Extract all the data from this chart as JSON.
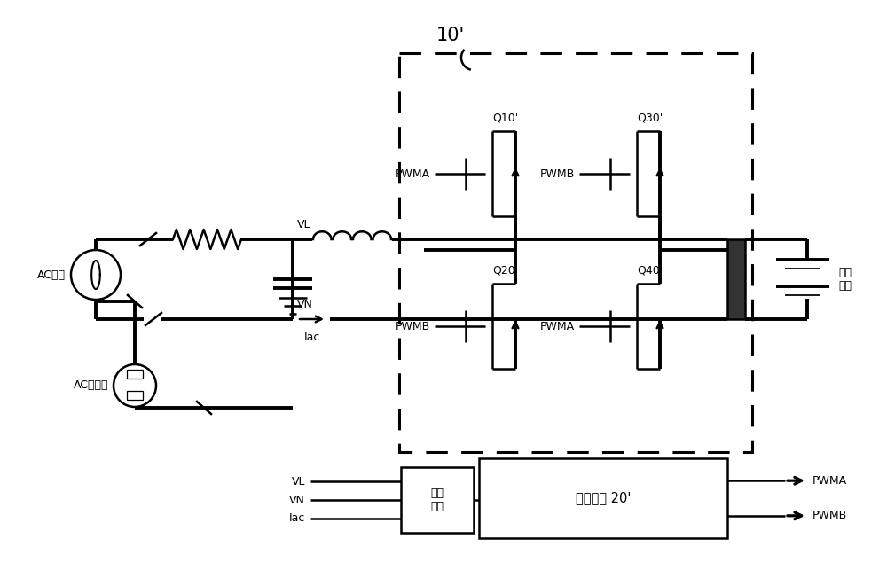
{
  "bg_color": "#ffffff",
  "line_color": "#000000",
  "lw": 1.8,
  "tlw": 2.8,
  "dlw": 2.2,
  "labels": {
    "ac_input": "AC输入",
    "ac_output": "AC输出端",
    "vl": "VL",
    "vn": "VN",
    "iac": "Iac",
    "q10": "Q10'",
    "q20": "Q20'",
    "q30": "Q30'",
    "q40": "Q40'",
    "pwma_q10": "PWMA",
    "pwmb_q30": "PWMB",
    "pwmb_q20": "PWMB",
    "pwma_q40": "PWMA",
    "module_label": "控制模块 20'",
    "sample_label": "采样\n电路",
    "pwma_out": "PWMA",
    "pwmb_out": "PWMB",
    "high_voltage": "高压\n电池",
    "block_label": "10'"
  }
}
